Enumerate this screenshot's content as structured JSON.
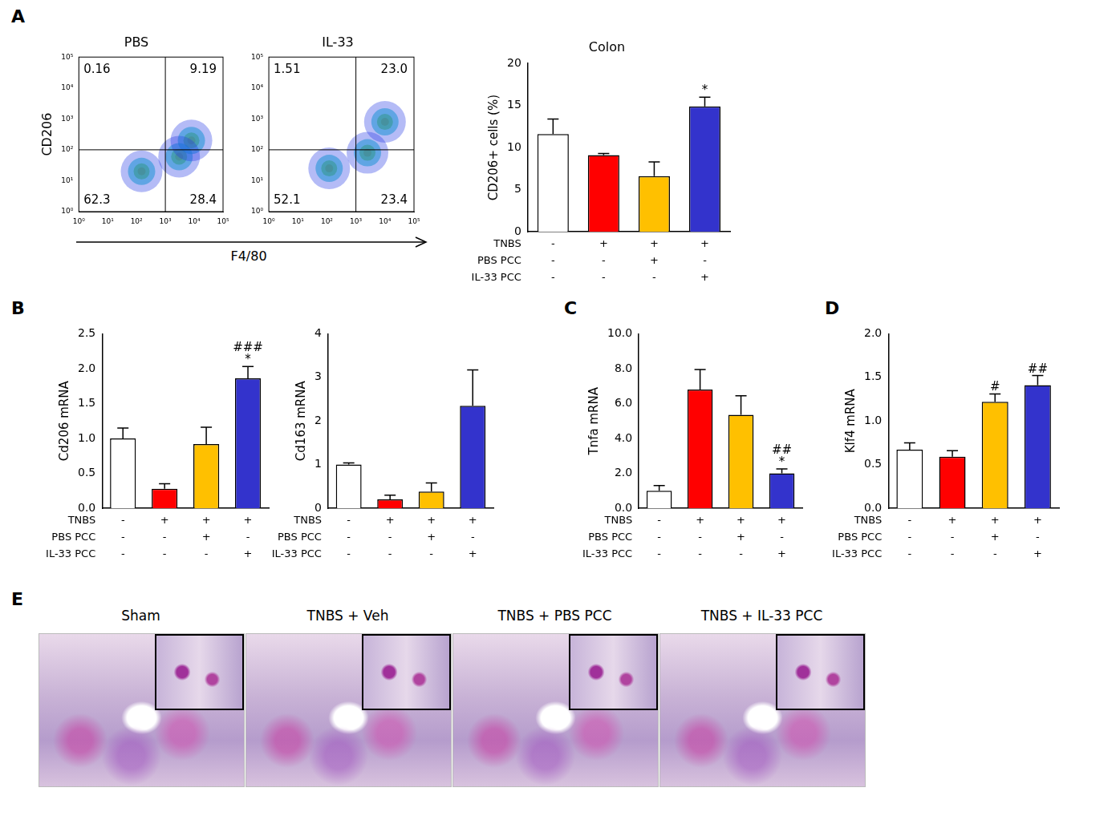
{
  "panel_labels": [
    "A",
    "B",
    "C",
    "D",
    "E"
  ],
  "chart_data": [
    {
      "type": "scatter",
      "title": "PBS",
      "y_label": "CD206",
      "x_label": "F4/80",
      "log": true,
      "xlim": [
        1,
        100000
      ],
      "ylim": [
        1,
        100000
      ],
      "xticks": [
        {
          "value": 1,
          "label": "10⁰"
        },
        {
          "value": 10,
          "label": "10¹"
        },
        {
          "value": 100,
          "label": "10²"
        },
        {
          "value": 1000,
          "label": "10³"
        },
        {
          "value": 10000,
          "label": "10⁴"
        },
        {
          "value": 100000,
          "label": "10⁵"
        }
      ],
      "yticks": [
        {
          "value": 1,
          "label": "10⁰"
        },
        {
          "value": 10,
          "label": "10¹"
        },
        {
          "value": 100,
          "label": "10²"
        },
        {
          "value": 1000,
          "label": "10³"
        },
        {
          "value": 10000,
          "label": "10⁴"
        },
        {
          "value": 100000,
          "label": "10⁵"
        }
      ],
      "grid": false,
      "gate": {
        "x": 1000,
        "y": 100
      },
      "quadrants": {
        "upper_left": 0.16,
        "upper_right": 9.19,
        "lower_left": 62.3,
        "lower_right": 28.4
      },
      "values": [
        {
          "x": 150,
          "y": 20
        },
        {
          "x": 3000,
          "y": 60
        },
        {
          "x": 8000,
          "y": 200
        }
      ]
    },
    {
      "type": "scatter",
      "title": "IL-33",
      "log": true,
      "xlim": [
        1,
        100000
      ],
      "ylim": [
        1,
        100000
      ],
      "xticks": [
        {
          "value": 1,
          "label": "10⁰"
        },
        {
          "value": 10,
          "label": "10¹"
        },
        {
          "value": 100,
          "label": "10²"
        },
        {
          "value": 1000,
          "label": "10³"
        },
        {
          "value": 10000,
          "label": "10⁴"
        },
        {
          "value": 100000,
          "label": "10⁵"
        }
      ],
      "yticks": [
        {
          "value": 1,
          "label": "10⁰"
        },
        {
          "value": 10,
          "label": "10¹"
        },
        {
          "value": 100,
          "label": "10²"
        },
        {
          "value": 1000,
          "label": "10³"
        },
        {
          "value": 10000,
          "label": "10⁴"
        },
        {
          "value": 100000,
          "label": "10⁵"
        }
      ],
      "grid": false,
      "gate": {
        "x": 1000,
        "y": 100
      },
      "quadrants": {
        "upper_left": 1.51,
        "upper_right": {
          "value": 23,
          "label": "23.0"
        },
        "lower_left": 52.1,
        "lower_right": 23.4
      },
      "values": [
        {
          "x": 120,
          "y": 25
        },
        {
          "x": 2500,
          "y": 80
        },
        {
          "x": 10000,
          "y": 800
        }
      ]
    },
    {
      "type": "bar",
      "title": "Colon",
      "y_label": "CD206+ cells (%)",
      "categories": [
        null,
        null,
        null,
        null
      ],
      "treatments": [
        {
          "name": "TNBS",
          "marks": [
            "-",
            "+",
            "+",
            "+"
          ]
        },
        {
          "name": "PBS PCC",
          "marks": [
            "-",
            "-",
            "+",
            "-"
          ]
        },
        {
          "name": "IL-33 PCC",
          "marks": [
            "-",
            "-",
            "-",
            "+"
          ]
        }
      ],
      "values": [
        11.6,
        9.1,
        6.6,
        14.9
      ],
      "errors": [
        1.8,
        0.2,
        1.7,
        1.1
      ],
      "colors": [
        "#ffffff",
        "#ff0000",
        "#ffc000",
        "#3333cc"
      ],
      "ylim": [
        0,
        20
      ],
      "yticks": [
        0,
        5,
        10,
        15,
        20
      ],
      "grid": false,
      "significance": [
        [],
        [],
        [],
        [
          "*"
        ]
      ]
    },
    {
      "type": "bar",
      "y_label": "Cd206 mRNA",
      "categories": [
        null,
        null,
        null,
        null
      ],
      "treatments": [
        {
          "name": "TNBS",
          "marks": [
            "-",
            "+",
            "+",
            "+"
          ]
        },
        {
          "name": "PBS PCC",
          "marks": [
            "-",
            "-",
            "+",
            "-"
          ]
        },
        {
          "name": "IL-33 PCC",
          "marks": [
            "-",
            "-",
            "-",
            "+"
          ]
        }
      ],
      "values": [
        1.0,
        0.28,
        0.92,
        1.86
      ],
      "errors": [
        0.15,
        0.07,
        0.24,
        0.17
      ],
      "colors": [
        "#ffffff",
        "#ff0000",
        "#ffc000",
        "#3333cc"
      ],
      "ylim": [
        0,
        2.5
      ],
      "yticks": [
        {
          "value": 0,
          "label": "0.0"
        },
        0.5,
        {
          "value": 1,
          "label": "1.0"
        },
        1.5,
        {
          "value": 2,
          "label": "2.0"
        },
        2.5
      ],
      "grid": false,
      "significance": [
        [],
        [],
        [],
        [
          "###",
          "*"
        ]
      ]
    },
    {
      "type": "bar",
      "y_label": "Cd163 mRNA",
      "categories": [
        null,
        null,
        null,
        null
      ],
      "treatments": [
        {
          "name": "TNBS",
          "marks": [
            "-",
            "+",
            "+",
            "+"
          ]
        },
        {
          "name": "PBS PCC",
          "marks": [
            "-",
            "-",
            "+",
            "-"
          ]
        },
        {
          "name": "IL-33 PCC",
          "marks": [
            "-",
            "-",
            "-",
            "+"
          ]
        }
      ],
      "values": [
        1.0,
        0.2,
        0.38,
        2.35
      ],
      "errors": [
        0.04,
        0.1,
        0.2,
        0.82
      ],
      "colors": [
        "#ffffff",
        "#ff0000",
        "#ffc000",
        "#3333cc"
      ],
      "ylim": [
        0,
        4
      ],
      "yticks": [
        0,
        1,
        2,
        3,
        4
      ],
      "grid": false,
      "significance": [
        [],
        [],
        [],
        []
      ]
    },
    {
      "type": "bar",
      "y_label": "Tnfa mRNA",
      "categories": [
        null,
        null,
        null,
        null
      ],
      "treatments": [
        {
          "name": "TNBS",
          "marks": [
            "-",
            "+",
            "+",
            "+"
          ]
        },
        {
          "name": "PBS PCC",
          "marks": [
            "-",
            "-",
            "+",
            "-"
          ]
        },
        {
          "name": "IL-33 PCC",
          "marks": [
            "-",
            "-",
            "-",
            "+"
          ]
        }
      ],
      "values": [
        1.0,
        6.8,
        5.35,
        2.0
      ],
      "errors": [
        0.3,
        1.15,
        1.1,
        0.25
      ],
      "colors": [
        "#ffffff",
        "#ff0000",
        "#ffc000",
        "#3333cc"
      ],
      "ylim": [
        0,
        10
      ],
      "yticks": [
        {
          "value": 0,
          "label": "0.0"
        },
        {
          "value": 2,
          "label": "2.0"
        },
        {
          "value": 4,
          "label": "4.0"
        },
        {
          "value": 6,
          "label": "6.0"
        },
        {
          "value": 8,
          "label": "8.0"
        },
        {
          "value": 10,
          "label": "10.0"
        }
      ],
      "grid": false,
      "significance": [
        [],
        [],
        [],
        [
          "##",
          "*"
        ]
      ]
    },
    {
      "type": "bar",
      "y_label": "Klf4 mRNA",
      "categories": [
        null,
        null,
        null,
        null
      ],
      "treatments": [
        {
          "name": "TNBS",
          "marks": [
            "-",
            "+",
            "+",
            "+"
          ]
        },
        {
          "name": "PBS PCC",
          "marks": [
            "-",
            "-",
            "+",
            "-"
          ]
        },
        {
          "name": "IL-33 PCC",
          "marks": [
            "-",
            "-",
            "-",
            "+"
          ]
        }
      ],
      "values": [
        0.67,
        0.59,
        1.22,
        1.41
      ],
      "errors": [
        0.08,
        0.07,
        0.09,
        0.11
      ],
      "colors": [
        "#ffffff",
        "#ff0000",
        "#ffc000",
        "#3333cc"
      ],
      "ylim": [
        0,
        2
      ],
      "yticks": [
        {
          "value": 0,
          "label": "0.0"
        },
        0.5,
        {
          "value": 1,
          "label": "1.0"
        },
        1.5,
        {
          "value": 2,
          "label": "2.0"
        }
      ],
      "grid": false,
      "significance": [
        [],
        [],
        [
          "#"
        ],
        [
          "##"
        ]
      ]
    }
  ],
  "histology": {
    "panels": [
      {
        "title": "Sham"
      },
      {
        "title": "TNBS + Veh"
      },
      {
        "title": "TNBS + PBS PCC"
      },
      {
        "title": "TNBS + IL-33 PCC"
      }
    ]
  }
}
